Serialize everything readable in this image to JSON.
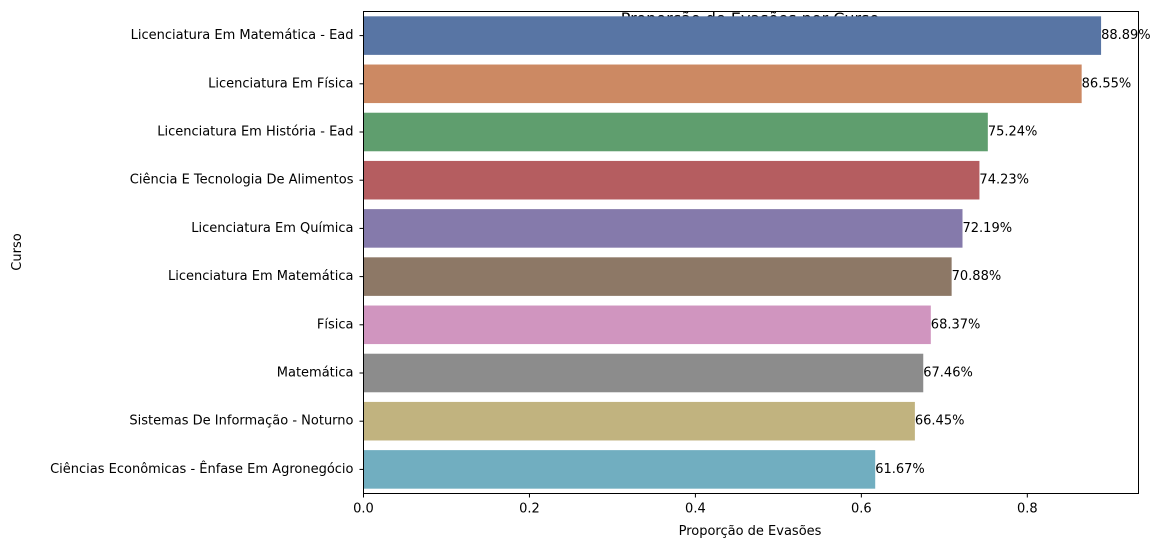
{
  "chart_data": {
    "type": "bar",
    "orientation": "horizontal",
    "title": "Proporção de Evasões por Curso",
    "xlabel": "Proporção de Evasões",
    "ylabel": "Curso",
    "xlim": [
      0,
      0.934
    ],
    "xticks": [
      0.0,
      0.2,
      0.4,
      0.6,
      0.8
    ],
    "xtick_labels": [
      "0.0",
      "0.2",
      "0.4",
      "0.6",
      "0.8"
    ],
    "grid": false,
    "categories": [
      "Licenciatura Em Matemática - Ead",
      "Licenciatura Em Física",
      "Licenciatura Em História - Ead",
      "Ciência E Tecnologia De Alimentos",
      "Licenciatura Em Química",
      "Licenciatura Em Matemática",
      "Física",
      "Matemática",
      "Sistemas De Informação - Noturno",
      "Ciências Econômicas - Ênfase Em Agronegócio"
    ],
    "values": [
      0.8889,
      0.8655,
      0.7524,
      0.7423,
      0.7219,
      0.7088,
      0.6837,
      0.6746,
      0.6645,
      0.6167
    ],
    "data_labels": [
      "88.89%",
      "86.55%",
      "75.24%",
      "74.23%",
      "72.19%",
      "70.88%",
      "68.37%",
      "67.46%",
      "66.45%",
      "61.67%"
    ],
    "colors": [
      "#5875a4",
      "#cc8963",
      "#5f9e6e",
      "#b55d60",
      "#857aab",
      "#8d7866",
      "#d095bf",
      "#8c8c8c",
      "#c1b37f",
      "#71aec0"
    ]
  }
}
